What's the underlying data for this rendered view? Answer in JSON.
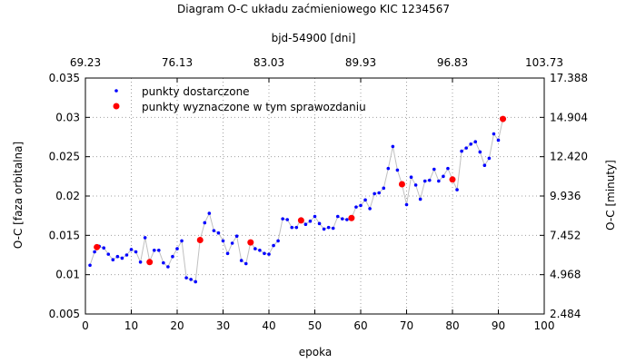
{
  "chart_data": {
    "type": "scatter",
    "title": "Diagram O-C układu zaćmieniowego KIC 1234567",
    "xlabel": "epoka",
    "x2label": "bjd-54900 [dni]",
    "ylabel": "O-C [faza orbitalna]",
    "y2label": "O-C [minuty]",
    "xlim": [
      0,
      100
    ],
    "ylim": [
      0.005,
      0.035
    ],
    "x_ticks": [
      "0",
      "10",
      "20",
      "30",
      "40",
      "50",
      "60",
      "70",
      "80",
      "90",
      "100"
    ],
    "x_tick_values": [
      0,
      10,
      20,
      30,
      40,
      50,
      60,
      70,
      80,
      90,
      100
    ],
    "y_ticks": [
      "0.005",
      "0.01",
      "0.015",
      "0.02",
      "0.025",
      "0.03",
      "0.035"
    ],
    "y_tick_values": [
      0.005,
      0.01,
      0.015,
      0.02,
      0.025,
      0.03,
      0.035
    ],
    "x2_ticks": [
      "69.23",
      "76.13",
      "83.03",
      "89.93",
      "96.83",
      "103.73"
    ],
    "x2_tick_values": [
      0,
      20,
      40,
      60,
      80,
      100
    ],
    "y2_ticks": [
      "2.484",
      "4.968",
      "7.452",
      "9.936",
      "12.420",
      "14.904",
      "17.388"
    ],
    "y2_tick_values": [
      0.005,
      0.01,
      0.015,
      0.02,
      0.025,
      0.03,
      0.035
    ],
    "grid": true,
    "legend_position": "top-left",
    "series": [
      {
        "name": "punkty dostarczone",
        "color": "#0000ff",
        "marker": "dot",
        "line_color": "#c0c0c0",
        "x": [
          1,
          2,
          3,
          4,
          5,
          6,
          7,
          8,
          9,
          10,
          11,
          12,
          13,
          14,
          15,
          16,
          17,
          18,
          19,
          20,
          21,
          22,
          23,
          24,
          25,
          26,
          27,
          28,
          29,
          30,
          31,
          32,
          33,
          34,
          35,
          36,
          37,
          38,
          39,
          40,
          41,
          42,
          43,
          44,
          45,
          46,
          47,
          48,
          49,
          50,
          51,
          52,
          53,
          54,
          55,
          56,
          57,
          58,
          59,
          60,
          61,
          62,
          63,
          64,
          65,
          66,
          67,
          68,
          69,
          70,
          71,
          72,
          73,
          74,
          75,
          76,
          77,
          78,
          79,
          80,
          81,
          82,
          83,
          84,
          85,
          86,
          87,
          88,
          89,
          90,
          91
        ],
        "y": [
          0.0112,
          0.0129,
          0.0136,
          0.0134,
          0.0126,
          0.0119,
          0.0123,
          0.0121,
          0.0125,
          0.0132,
          0.0129,
          0.0116,
          0.0147,
          0.0117,
          0.0131,
          0.0131,
          0.0115,
          0.011,
          0.0123,
          0.0133,
          0.0143,
          0.0096,
          0.0094,
          0.0091,
          0.0145,
          0.0166,
          0.0178,
          0.0156,
          0.0153,
          0.0143,
          0.0127,
          0.014,
          0.0149,
          0.0118,
          0.0114,
          0.0141,
          0.0133,
          0.0131,
          0.0127,
          0.0126,
          0.0137,
          0.0143,
          0.0171,
          0.017,
          0.016,
          0.016,
          0.0171,
          0.0164,
          0.0168,
          0.0174,
          0.0165,
          0.0158,
          0.016,
          0.0159,
          0.0174,
          0.0171,
          0.017,
          0.0172,
          0.0186,
          0.0188,
          0.0195,
          0.0184,
          0.0203,
          0.0204,
          0.021,
          0.0235,
          0.0263,
          0.0233,
          0.0215,
          0.0189,
          0.0224,
          0.0214,
          0.0196,
          0.0219,
          0.022,
          0.0234,
          0.0219,
          0.0225,
          0.0235,
          0.0221,
          0.0208,
          0.0257,
          0.0261,
          0.0266,
          0.0269,
          0.0256,
          0.0239,
          0.0248,
          0.0279,
          0.0271,
          0.0298
        ]
      },
      {
        "name": "punkty wyznaczone w tym sprawozdaniu",
        "color": "#ff0000",
        "marker": "dot",
        "x": [
          2.5,
          14,
          25,
          36,
          47,
          58,
          69,
          80,
          91
        ],
        "y": [
          0.0135,
          0.0116,
          0.0144,
          0.0141,
          0.0169,
          0.0172,
          0.0215,
          0.0221,
          0.0298
        ]
      }
    ]
  }
}
